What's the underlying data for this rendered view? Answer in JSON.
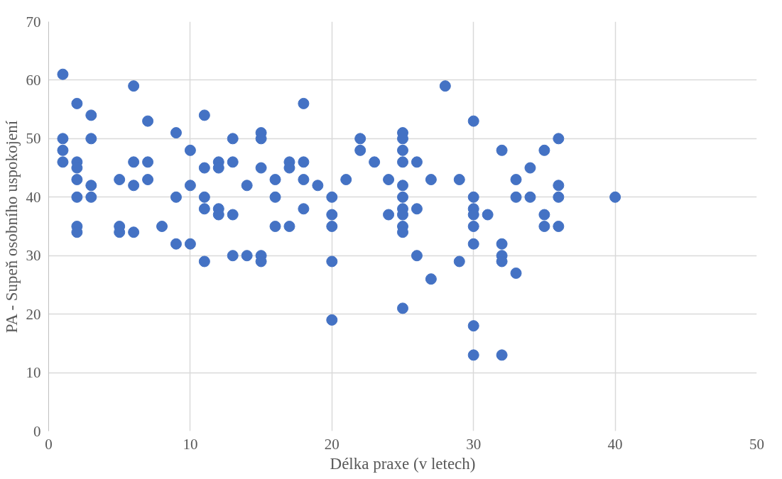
{
  "chart_data": {
    "type": "scatter",
    "xlabel": "Délka praxe (v letech)",
    "ylabel": "PA - Supeň osobního uspokojení",
    "x": [
      1,
      1,
      1,
      1,
      2,
      2,
      2,
      2,
      2,
      2,
      2,
      3,
      3,
      3,
      3,
      5,
      5,
      5,
      6,
      6,
      6,
      6,
      7,
      7,
      7,
      8,
      9,
      9,
      9,
      10,
      10,
      10,
      11,
      11,
      11,
      11,
      11,
      12,
      12,
      12,
      12,
      13,
      13,
      13,
      13,
      14,
      14,
      15,
      15,
      15,
      15,
      15,
      16,
      16,
      16,
      17,
      17,
      17,
      18,
      18,
      18,
      18,
      19,
      20,
      20,
      20,
      20,
      20,
      21,
      22,
      22,
      23,
      24,
      24,
      25,
      25,
      25,
      25,
      25,
      25,
      25,
      25,
      25,
      25,
      25,
      26,
      26,
      26,
      27,
      27,
      28,
      29,
      29,
      30,
      30,
      30,
      30,
      30,
      30,
      30,
      30,
      31,
      32,
      32,
      32,
      32,
      32,
      33,
      33,
      33,
      34,
      34,
      35,
      35,
      35,
      36,
      36,
      36,
      36,
      40
    ],
    "values": [
      61,
      50,
      48,
      46,
      56,
      46,
      45,
      43,
      40,
      35,
      34,
      54,
      50,
      42,
      40,
      43,
      35,
      34,
      59,
      46,
      42,
      34,
      53,
      46,
      43,
      35,
      51,
      40,
      32,
      48,
      42,
      32,
      54,
      45,
      40,
      38,
      29,
      46,
      45,
      38,
      37,
      50,
      46,
      37,
      30,
      42,
      30,
      51,
      50,
      45,
      30,
      29,
      43,
      40,
      35,
      46,
      45,
      35,
      56,
      46,
      43,
      38,
      42,
      40,
      37,
      35,
      29,
      19,
      43,
      50,
      48,
      46,
      43,
      37,
      51,
      50,
      48,
      46,
      42,
      40,
      38,
      37,
      35,
      34,
      21,
      46,
      38,
      30,
      43,
      26,
      59,
      43,
      29,
      53,
      40,
      38,
      37,
      35,
      32,
      18,
      13,
      37,
      48,
      32,
      30,
      29,
      13,
      43,
      40,
      27,
      45,
      40,
      48,
      37,
      35,
      50,
      42,
      40,
      35,
      40
    ],
    "color": "#4472c4",
    "marker": "circle",
    "xlim": [
      0,
      50
    ],
    "ylim": [
      0,
      70
    ],
    "xticks": [
      0,
      10,
      20,
      30,
      40,
      50
    ],
    "yticks": [
      0,
      10,
      20,
      30,
      40,
      50,
      60,
      70
    ],
    "grid": true
  }
}
